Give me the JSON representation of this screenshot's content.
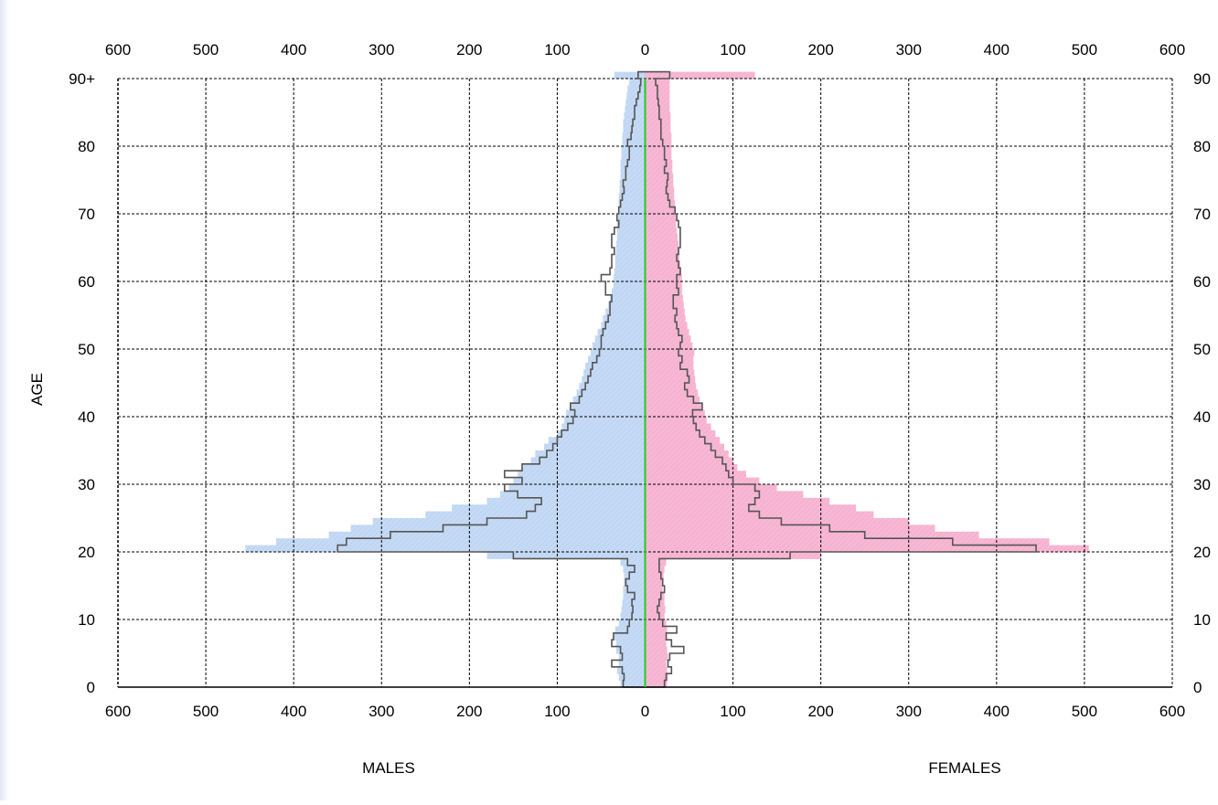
{
  "colors": {
    "males_fill": "#c5daf5",
    "females_fill": "#f7b8d4",
    "outline": "#555555",
    "center_line": "#22cc22",
    "grid": "#000000"
  },
  "chart_data": {
    "type": "population-pyramid",
    "ylabel": "AGE",
    "xlabel_left": "MALES",
    "xlabel_right": "FEMALES",
    "x_ticks": [
      "600",
      "500",
      "400",
      "300",
      "200",
      "100",
      "0",
      "100",
      "200",
      "300",
      "400",
      "500",
      "600"
    ],
    "x_tick_values": [
      -600,
      -500,
      -400,
      -300,
      -200,
      -100,
      0,
      100,
      200,
      300,
      400,
      500,
      600
    ],
    "y_ticks_left": [
      "0",
      "10",
      "20",
      "30",
      "40",
      "50",
      "60",
      "70",
      "80",
      "90+"
    ],
    "y_ticks_right": [
      "0",
      "10",
      "20",
      "30",
      "40",
      "50",
      "60",
      "70",
      "80",
      "90"
    ],
    "y_tick_values": [
      0,
      10,
      20,
      30,
      40,
      50,
      60,
      70,
      80,
      90
    ],
    "xlim": [
      -600,
      600
    ],
    "ylim": [
      0,
      90
    ],
    "grid": true,
    "bin_size": 1,
    "series": [
      {
        "name": "MALES",
        "role": "filled",
        "values": [
          28,
          30,
          32,
          30,
          30,
          33,
          33,
          35,
          34,
          30,
          28,
          27,
          26,
          25,
          25,
          24,
          24,
          25,
          28,
          180,
          455,
          420,
          360,
          335,
          310,
          250,
          220,
          180,
          165,
          155,
          150,
          145,
          140,
          130,
          125,
          115,
          110,
          100,
          95,
          92,
          90,
          85,
          82,
          78,
          75,
          72,
          70,
          68,
          65,
          62,
          60,
          57,
          54,
          50,
          48,
          45,
          42,
          40,
          38,
          36,
          36,
          35,
          34,
          34,
          33,
          33,
          32,
          32,
          32,
          31,
          30,
          30,
          30,
          29,
          29,
          28,
          28,
          28,
          27,
          27,
          26,
          26,
          25,
          25,
          24,
          23,
          22,
          21,
          20,
          18,
          35
        ]
      },
      {
        "name": "MALES",
        "role": "outline",
        "values": [
          25,
          24,
          26,
          38,
          26,
          28,
          38,
          36,
          20,
          18,
          15,
          14,
          15,
          12,
          20,
          22,
          18,
          12,
          20,
          150,
          350,
          340,
          290,
          230,
          180,
          135,
          125,
          118,
          145,
          160,
          140,
          160,
          140,
          120,
          112,
          105,
          100,
          95,
          88,
          82,
          80,
          85,
          75,
          72,
          68,
          65,
          62,
          60,
          55,
          52,
          50,
          50,
          48,
          45,
          42,
          40,
          40,
          38,
          45,
          45,
          50,
          40,
          38,
          38,
          35,
          38,
          38,
          35,
          30,
          32,
          30,
          28,
          26,
          24,
          25,
          22,
          22,
          20,
          18,
          18,
          20,
          16,
          15,
          14,
          12,
          12,
          10,
          8,
          6,
          5,
          8
        ]
      },
      {
        "name": "FEMALES",
        "role": "filled",
        "values": [
          25,
          26,
          25,
          24,
          26,
          25,
          24,
          24,
          25,
          24,
          22,
          23,
          22,
          22,
          20,
          20,
          21,
          22,
          24,
          200,
          505,
          460,
          380,
          330,
          300,
          260,
          240,
          210,
          180,
          150,
          130,
          115,
          105,
          100,
          95,
          90,
          85,
          80,
          75,
          70,
          68,
          65,
          62,
          60,
          58,
          57,
          56,
          55,
          55,
          56,
          54,
          52,
          50,
          48,
          46,
          45,
          44,
          43,
          42,
          42,
          42,
          41,
          40,
          39,
          39,
          38,
          37,
          36,
          35,
          35,
          34,
          34,
          33,
          33,
          32,
          32,
          31,
          31,
          30,
          30,
          30,
          30,
          29,
          29,
          29,
          28,
          28,
          28,
          28,
          28,
          125
        ]
      },
      {
        "name": "FEMALES",
        "role": "outline",
        "values": [
          22,
          24,
          30,
          26,
          28,
          44,
          30,
          24,
          36,
          20,
          16,
          14,
          16,
          18,
          22,
          20,
          18,
          16,
          16,
          165,
          445,
          350,
          250,
          210,
          155,
          130,
          118,
          125,
          130,
          125,
          100,
          95,
          92,
          88,
          80,
          75,
          68,
          62,
          58,
          55,
          54,
          65,
          55,
          48,
          45,
          50,
          48,
          40,
          42,
          38,
          40,
          42,
          38,
          36,
          34,
          36,
          32,
          32,
          38,
          36,
          36,
          40,
          38,
          36,
          38,
          40,
          40,
          40,
          38,
          36,
          34,
          28,
          26,
          24,
          25,
          26,
          22,
          24,
          22,
          22,
          20,
          18,
          18,
          18,
          16,
          16,
          15,
          14,
          14,
          12,
          28
        ]
      }
    ]
  }
}
